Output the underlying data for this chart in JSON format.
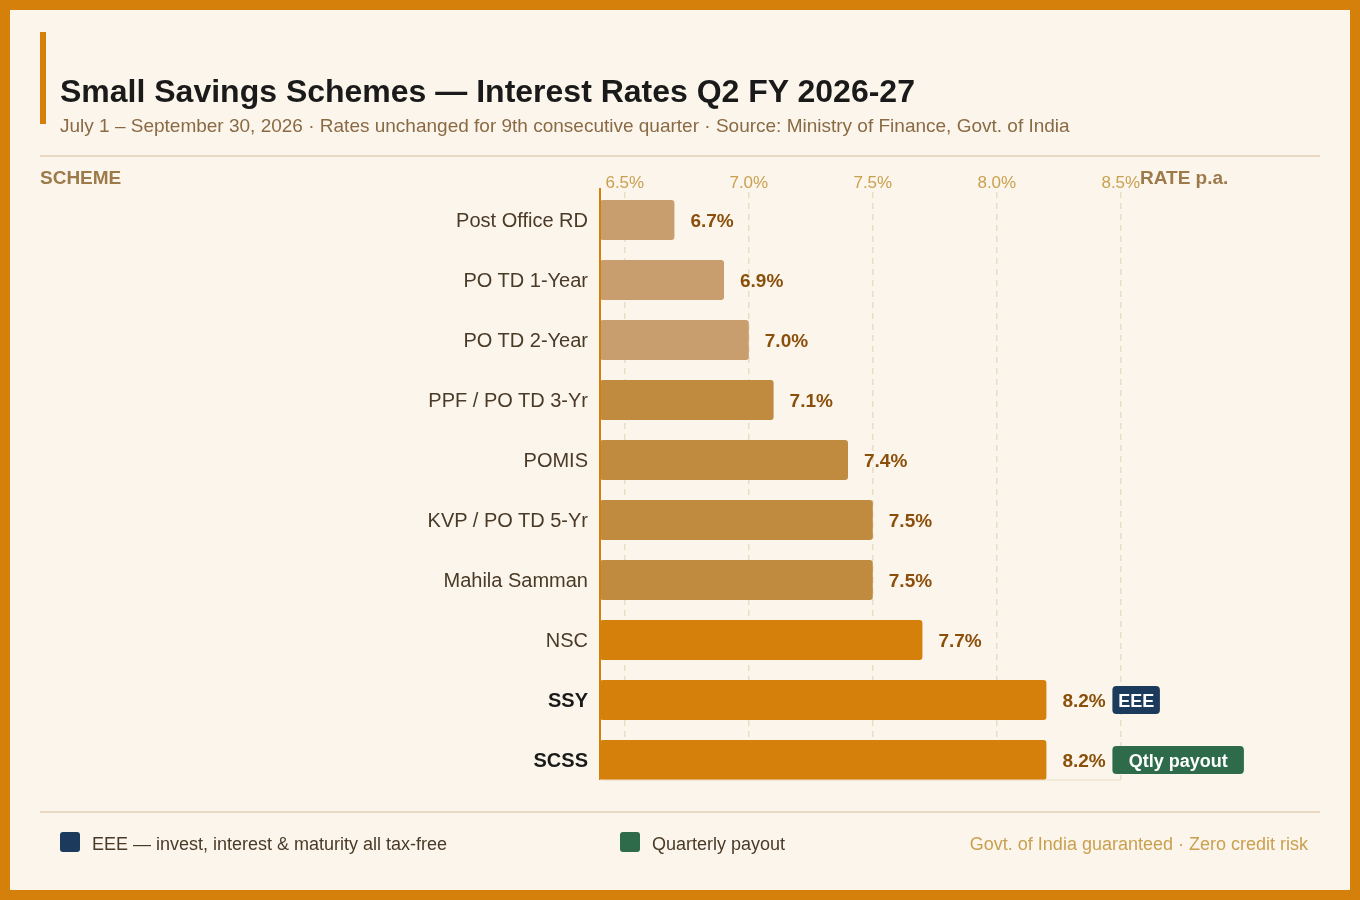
{
  "chart_data": {
    "type": "bar",
    "orientation": "horizontal",
    "title": "Small Savings Schemes — Interest Rates Q2 FY 2026-27",
    "subtitle": "July 1 – September 30, 2026 · Rates unchanged for 9th consecutive quarter · Source: Ministry of Finance, Govt. of India",
    "xlabel": "RATE p.a.",
    "categories": [
      "Post Office RD",
      "PO TD 1-Year",
      "PO TD 2-Year",
      "PPF / PO TD 3-Yr",
      "POMIS",
      "KVP / PO TD 5-Yr",
      "Mahila Samman",
      "NSC",
      "SSY",
      "SCSS"
    ],
    "values": [
      6.7,
      6.9,
      7.0,
      7.1,
      7.4,
      7.5,
      7.5,
      7.7,
      8.2,
      8.2
    ],
    "value_labels": [
      "6.7%",
      "6.9%",
      "7.0%",
      "7.1%",
      "7.4%",
      "7.5%",
      "7.5%",
      "7.7%",
      "8.2%",
      "8.2%"
    ],
    "colors": [
      "#c89e6f",
      "#c89e6f",
      "#c89e6f",
      "#c08b3f",
      "#c08b3f",
      "#c08b3f",
      "#c08b3f",
      "#d4800a",
      "#d4800a",
      "#d4800a"
    ],
    "xlim": [
      6.4,
      8.5
    ],
    "xticks": [
      {
        "value": 6.5,
        "label": "6.5%"
      },
      {
        "value": 7.0,
        "label": "7.0%"
      },
      {
        "value": 7.5,
        "label": "7.5%"
      },
      {
        "value": 8.0,
        "label": "8.0%"
      },
      {
        "value": 8.5,
        "label": "8.5%"
      }
    ],
    "grid": "x",
    "annotations": [
      "SCHEME",
      "EEE",
      "Qtly payout",
      "EEE — invest, interest & maturity all tax-free",
      "Quarterly payout",
      "Govt. of India guaranteed · Zero credit risk"
    ]
  }
}
